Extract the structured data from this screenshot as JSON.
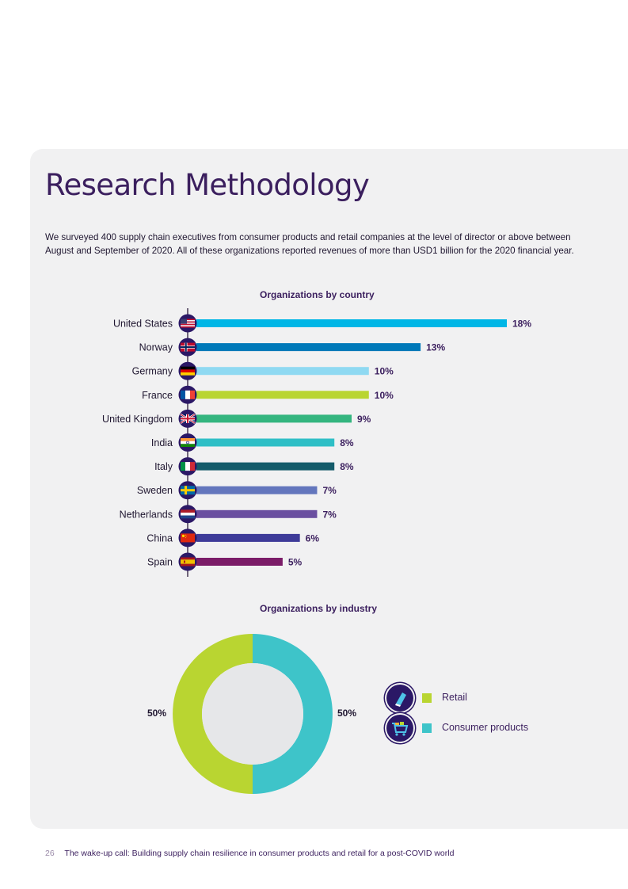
{
  "page": {
    "title": "Research Methodology",
    "intro": "We surveyed 400 supply chain executives from consumer products and retail companies at the level of director or above between August and September of 2020. All of these organizations reported revenues of more than USD1 billion for the 2020 financial year.",
    "footer": {
      "page_number": "26",
      "text": "The wake-up call: Building supply chain resilience in consumer products and retail for a post-COVID world"
    }
  },
  "chart_data": [
    {
      "type": "bar",
      "orientation": "horizontal",
      "title": "Organizations by country",
      "categories": [
        "United States",
        "Norway",
        "Germany",
        "France",
        "United Kingdom",
        "India",
        "Italy",
        "Sweden",
        "Netherlands",
        "China",
        "Spain"
      ],
      "values": [
        18,
        13,
        10,
        10,
        9,
        8,
        8,
        7,
        7,
        6,
        5
      ],
      "value_labels": [
        "18%",
        "13%",
        "10%",
        "10%",
        "9%",
        "8%",
        "8%",
        "7%",
        "7%",
        "6%",
        "5%"
      ],
      "unit": "%",
      "bar_colors": [
        "#00b6e6",
        "#0079b9",
        "#8fd9f2",
        "#b9d531",
        "#34b57f",
        "#2fbfc6",
        "#145b6a",
        "#6376bd",
        "#6a4fa0",
        "#3e3b99",
        "#7b1c68"
      ],
      "flag_icons": [
        "us-flag-icon",
        "norway-flag-icon",
        "germany-flag-icon",
        "france-flag-icon",
        "uk-flag-icon",
        "india-flag-icon",
        "italy-flag-icon",
        "sweden-flag-icon",
        "netherlands-flag-icon",
        "china-flag-icon",
        "spain-flag-icon"
      ],
      "xlim": [
        0,
        18
      ]
    },
    {
      "type": "pie",
      "subtype": "donut",
      "title": "Organizations by industry",
      "series": [
        {
          "name": "Retail",
          "value": 50,
          "label": "50%",
          "color": "#b9d531",
          "icon": "shoe-icon"
        },
        {
          "name": "Consumer products",
          "value": 50,
          "label": "50%",
          "color": "#3ec4c9",
          "icon": "shopping-cart-icon"
        }
      ]
    }
  ]
}
